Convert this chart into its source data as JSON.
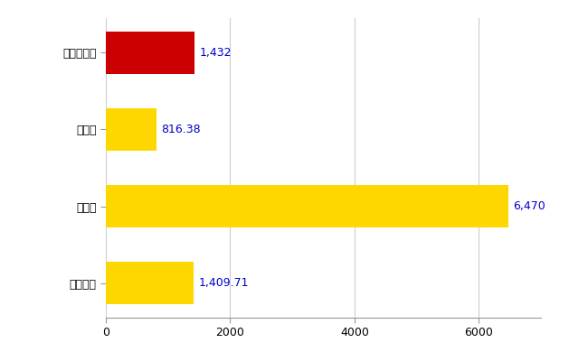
{
  "categories": [
    "五所川原市",
    "県平均",
    "県最大",
    "全国平均"
  ],
  "values": [
    1432,
    816.38,
    6470,
    1409.71
  ],
  "colors": [
    "#CC0000",
    "#FFD700",
    "#FFD700",
    "#FFD700"
  ],
  "labels": [
    "1,432",
    "816.38",
    "6,470",
    "1,409.71"
  ],
  "xlim": [
    0,
    7000
  ],
  "xticks": [
    0,
    2000,
    4000,
    6000
  ],
  "figsize": [
    6.5,
    4.0
  ],
  "dpi": 100,
  "bar_height": 0.55,
  "label_color": "#0000CC",
  "label_fontsize": 9,
  "tick_fontsize": 9,
  "grid_color": "#CCCCCC",
  "bg_color": "#FFFFFF"
}
